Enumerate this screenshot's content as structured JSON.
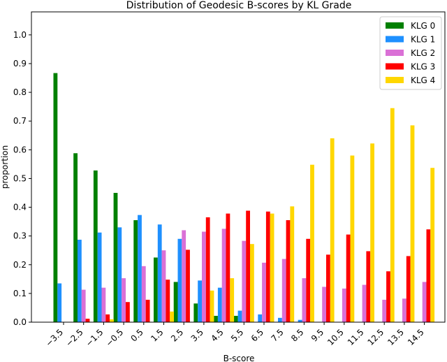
{
  "chart_data": {
    "type": "bar",
    "title": "Distribution of Geodesic B-scores by KL Grade",
    "xlabel": "B-score",
    "ylabel": "proportion",
    "ylim": [
      0,
      1.08
    ],
    "yticks": [
      "0.0",
      "0.1",
      "0.2",
      "0.3",
      "0.4",
      "0.5",
      "0.6",
      "0.7",
      "0.8",
      "0.9",
      "1.0"
    ],
    "categories": [
      "−3.5",
      "−2.5",
      "−1.5",
      "−0.5",
      "0.5",
      "1.5",
      "2.5",
      "3.5",
      "4.5",
      "5.5",
      "6.5",
      "7.5",
      "8.5",
      "9.5",
      "10.5",
      "11.5",
      "12.5",
      "13.5",
      "14.5"
    ],
    "grid": false,
    "legend_position": "top-right",
    "series": [
      {
        "name": "KLG 0",
        "color": "#008000",
        "values": [
          0.867,
          0.588,
          0.528,
          0.45,
          0.355,
          0.225,
          0.14,
          0.065,
          0.022,
          0.022,
          0,
          0,
          0,
          0,
          0,
          0,
          0,
          0,
          0
        ]
      },
      {
        "name": "KLG 1",
        "color": "#1e90ff",
        "values": [
          0.135,
          0.287,
          0.312,
          0.33,
          0.373,
          0.34,
          0.29,
          0.145,
          0.12,
          0.04,
          0.027,
          0.015,
          0.008,
          0,
          0,
          0,
          0,
          0,
          0
        ]
      },
      {
        "name": "KLG 2",
        "color": "#da70d6",
        "values": [
          0,
          0.113,
          0.12,
          0.153,
          0.195,
          0.25,
          0.32,
          0.315,
          0.325,
          0.283,
          0.207,
          0.22,
          0.153,
          0.123,
          0.117,
          0.13,
          0.078,
          0.082,
          0.14
        ]
      },
      {
        "name": "KLG 3",
        "color": "#ff0000",
        "values": [
          0,
          0.012,
          0.027,
          0.07,
          0.078,
          0.148,
          0.252,
          0.365,
          0.378,
          0.388,
          0.385,
          0.355,
          0.29,
          0.235,
          0.305,
          0.247,
          0.177,
          0.23,
          0.323
        ]
      },
      {
        "name": "KLG 4",
        "color": "#ffd700",
        "values": [
          0,
          0,
          0.01,
          0,
          0,
          0.037,
          0,
          0.11,
          0.153,
          0.272,
          0.378,
          0.403,
          0.548,
          0.64,
          0.58,
          0.622,
          0.745,
          0.685,
          0.537
        ]
      }
    ]
  }
}
